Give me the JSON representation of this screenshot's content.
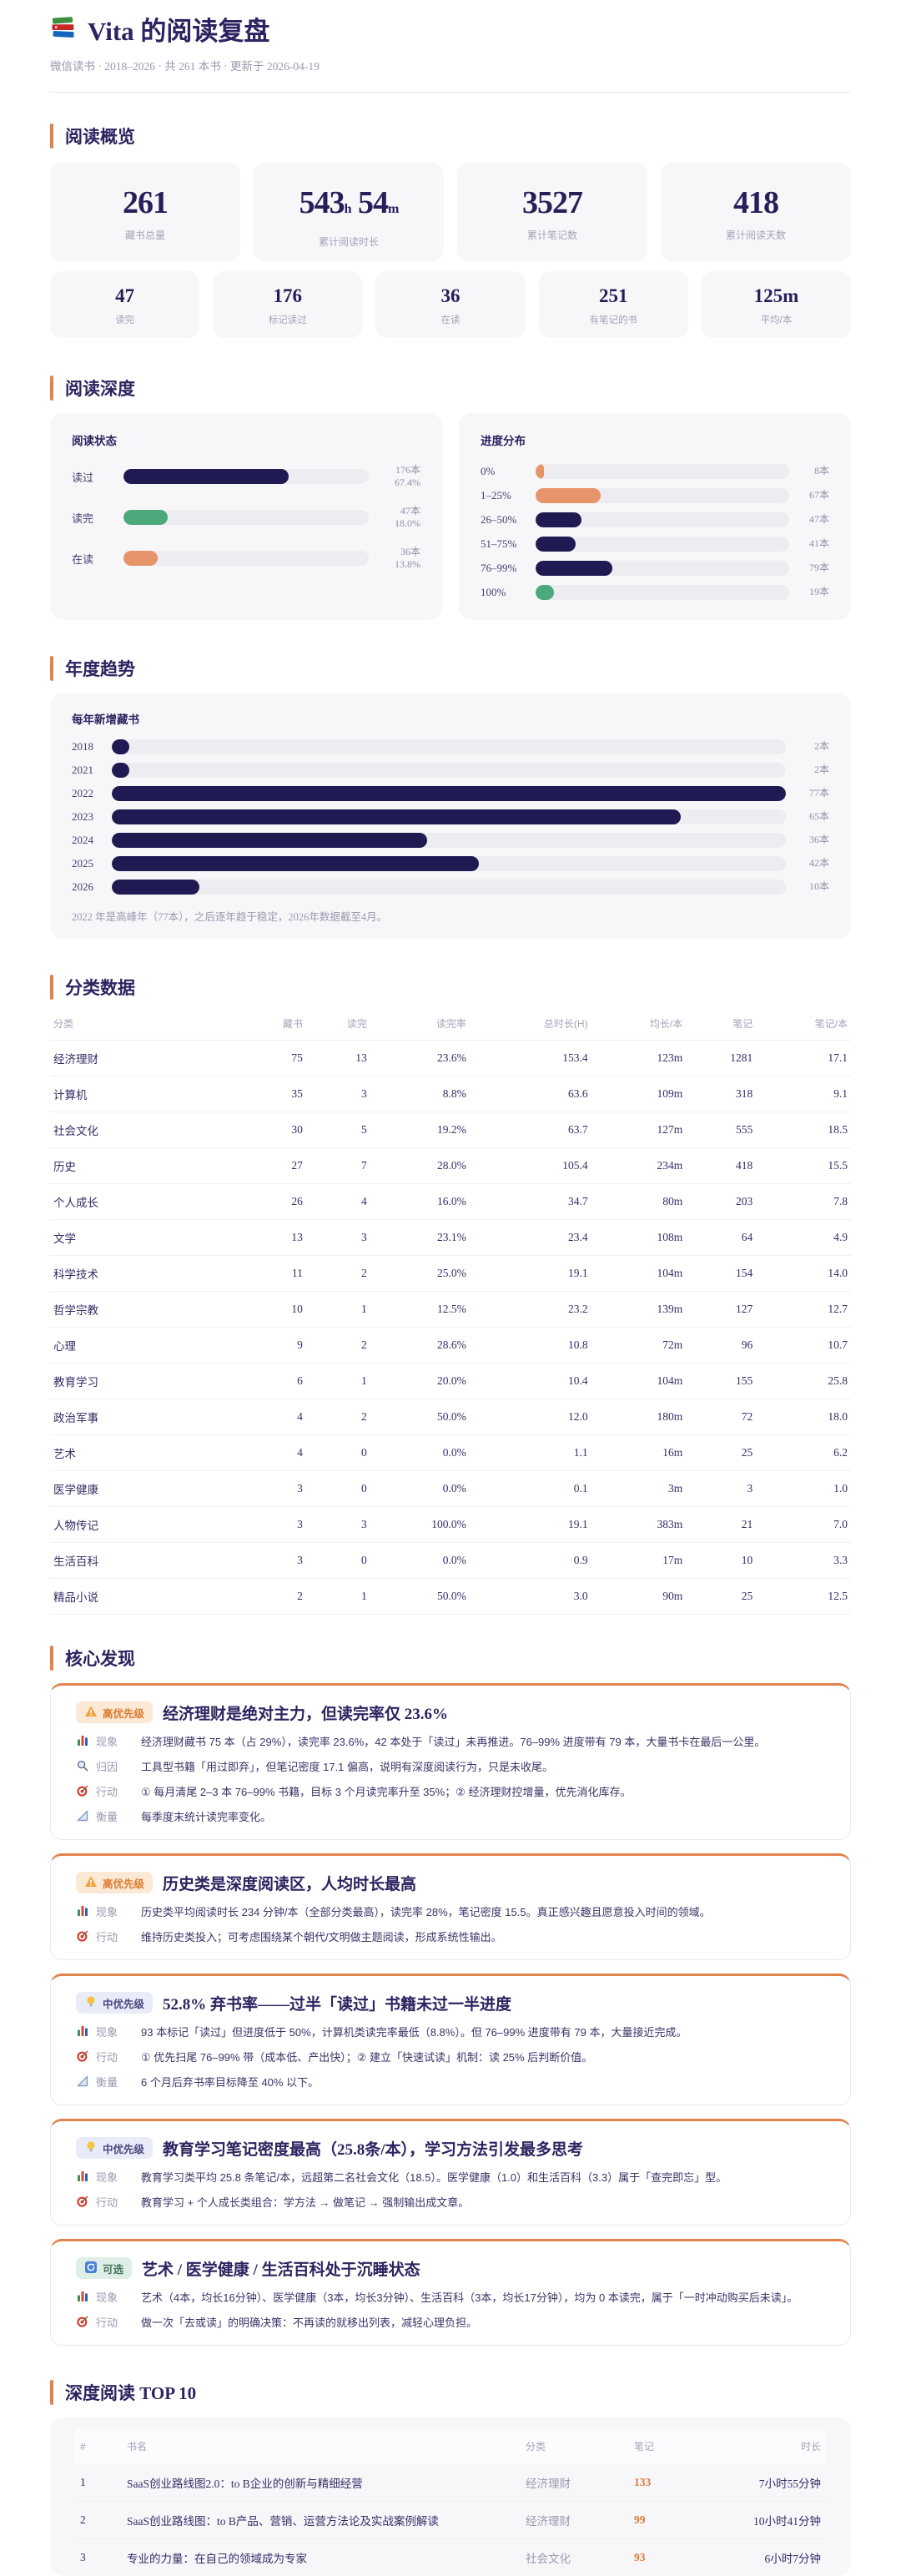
{
  "header": {
    "icon": "books-icon",
    "title": "Vita 的阅读复盘",
    "subtitle": "微信读书 · 2018–2026 · 共 261 本书 · 更新于 2026-04-19"
  },
  "colors": {
    "navy": "#201A52",
    "green": "#4BA97C",
    "orange": "#E6946A",
    "accent": "#E2824D",
    "note_orange": "#E07B35"
  },
  "sections": {
    "overview": "阅读概览",
    "depth": "阅读深度",
    "trend": "年度趋势",
    "category": "分类数据",
    "findings": "核心发现",
    "top10": "深度阅读 TOP 10"
  },
  "overview": {
    "primary": [
      {
        "parts": [
          {
            "t": "261"
          }
        ],
        "label": "藏书总量"
      },
      {
        "parts": [
          {
            "t": "543"
          },
          {
            "t": "h",
            "small": true
          },
          {
            "t": " 54",
            "small": false
          },
          {
            "t": "m",
            "small": true
          }
        ],
        "label": "累计阅读时长"
      },
      {
        "parts": [
          {
            "t": "3527"
          }
        ],
        "label": "累计笔记数"
      },
      {
        "parts": [
          {
            "t": "418"
          }
        ],
        "label": "累计阅读天数"
      }
    ],
    "secondary": [
      {
        "value": "47",
        "label": "读完"
      },
      {
        "value": "176",
        "label": "标记读过"
      },
      {
        "value": "36",
        "label": "在读"
      },
      {
        "value": "251",
        "label": "有笔记的书"
      },
      {
        "value": "125m",
        "label": "平均/本"
      }
    ]
  },
  "depth": {
    "status": {
      "title": "阅读状态",
      "bars": [
        {
          "label": "读过",
          "lines": [
            "176本",
            "67.4%"
          ],
          "pct": 67.4,
          "color": "navy"
        },
        {
          "label": "读完",
          "lines": [
            "47本",
            "18.0%"
          ],
          "pct": 18.0,
          "color": "green"
        },
        {
          "label": "在读",
          "lines": [
            "36本",
            "13.8%"
          ],
          "pct": 13.8,
          "color": "orange"
        }
      ]
    },
    "progress": {
      "title": "进度分布",
      "bars": [
        {
          "label": "0%",
          "lines": [
            "8本"
          ],
          "pct": 3.1,
          "color": "orange"
        },
        {
          "label": "1–25%",
          "lines": [
            "67本"
          ],
          "pct": 25.7,
          "color": "orange"
        },
        {
          "label": "26–50%",
          "lines": [
            "47本"
          ],
          "pct": 18.0,
          "color": "navy"
        },
        {
          "label": "51–75%",
          "lines": [
            "41本"
          ],
          "pct": 15.7,
          "color": "navy"
        },
        {
          "label": "76–99%",
          "lines": [
            "79本"
          ],
          "pct": 30.3,
          "color": "navy"
        },
        {
          "label": "100%",
          "lines": [
            "19本"
          ],
          "pct": 7.3,
          "color": "green"
        }
      ]
    }
  },
  "trend": {
    "title": "每年新增藏书",
    "bars": [
      {
        "label": "2018",
        "lines": [
          "2本"
        ],
        "pct": 2.6,
        "color": "navy"
      },
      {
        "label": "2021",
        "lines": [
          "2本"
        ],
        "pct": 2.6,
        "color": "navy"
      },
      {
        "label": "2022",
        "lines": [
          "77本"
        ],
        "pct": 100,
        "color": "navy"
      },
      {
        "label": "2023",
        "lines": [
          "65本"
        ],
        "pct": 84.4,
        "color": "navy"
      },
      {
        "label": "2024",
        "lines": [
          "36本"
        ],
        "pct": 46.8,
        "color": "navy"
      },
      {
        "label": "2025",
        "lines": [
          "42本"
        ],
        "pct": 54.5,
        "color": "navy"
      },
      {
        "label": "2026",
        "lines": [
          "10本"
        ],
        "pct": 13.0,
        "color": "navy"
      }
    ],
    "note": "2022 年是高峰年（77本），之后逐年趋于稳定，2026年数据截至4月。"
  },
  "category_table": {
    "headers": [
      "分类",
      "藏书",
      "读完",
      "读完率",
      "总时长(H)",
      "均长/本",
      "笔记",
      "笔记/本"
    ],
    "rows": [
      [
        "经济理财",
        "75",
        "13",
        "23.6%",
        "153.4",
        "123m",
        "1281",
        "17.1"
      ],
      [
        "计算机",
        "35",
        "3",
        "8.8%",
        "63.6",
        "109m",
        "318",
        "9.1"
      ],
      [
        "社会文化",
        "30",
        "5",
        "19.2%",
        "63.7",
        "127m",
        "555",
        "18.5"
      ],
      [
        "历史",
        "27",
        "7",
        "28.0%",
        "105.4",
        "234m",
        "418",
        "15.5"
      ],
      [
        "个人成长",
        "26",
        "4",
        "16.0%",
        "34.7",
        "80m",
        "203",
        "7.8"
      ],
      [
        "文学",
        "13",
        "3",
        "23.1%",
        "23.4",
        "108m",
        "64",
        "4.9"
      ],
      [
        "科学技术",
        "11",
        "2",
        "25.0%",
        "19.1",
        "104m",
        "154",
        "14.0"
      ],
      [
        "哲学宗教",
        "10",
        "1",
        "12.5%",
        "23.2",
        "139m",
        "127",
        "12.7"
      ],
      [
        "心理",
        "9",
        "2",
        "28.6%",
        "10.8",
        "72m",
        "96",
        "10.7"
      ],
      [
        "教育学习",
        "6",
        "1",
        "20.0%",
        "10.4",
        "104m",
        "155",
        "25.8"
      ],
      [
        "政治军事",
        "4",
        "2",
        "50.0%",
        "12.0",
        "180m",
        "72",
        "18.0"
      ],
      [
        "艺术",
        "4",
        "0",
        "0.0%",
        "1.1",
        "16m",
        "25",
        "6.2"
      ],
      [
        "医学健康",
        "3",
        "0",
        "0.0%",
        "0.1",
        "3m",
        "3",
        "1.0"
      ],
      [
        "人物传记",
        "3",
        "3",
        "100.0%",
        "19.1",
        "383m",
        "21",
        "7.0"
      ],
      [
        "生活百科",
        "3",
        "0",
        "0.0%",
        "0.9",
        "17m",
        "10",
        "3.3"
      ],
      [
        "精品小说",
        "2",
        "1",
        "50.0%",
        "3.0",
        "90m",
        "25",
        "12.5"
      ]
    ]
  },
  "findings": [
    {
      "badge": {
        "icon": "warning-icon",
        "label": "高优先级",
        "type": "high"
      },
      "title": "经济理财是绝对主力，但读完率仅 23.6%",
      "rows": [
        {
          "icon": "chart-icon",
          "label": "现象",
          "text": "经济理财藏书 75 本（占 29%），读完率 23.6%，42 本处于「读过」未再推进。76–99% 进度带有 79 本，大量书卡在最后一公里。"
        },
        {
          "icon": "magnifier-icon",
          "label": "归因",
          "text": "工具型书籍「用过即弃」，但笔记密度 17.1 偏高，说明有深度阅读行为，只是未收尾。"
        },
        {
          "icon": "target-icon",
          "label": "行动",
          "text": "① 每月清尾 2–3 本 76–99% 书籍，目标 3 个月读完率升至 35%；② 经济理财控增量，优先消化库存。"
        },
        {
          "icon": "ruler-icon",
          "label": "衡量",
          "text": "每季度末统计读完率变化。"
        }
      ]
    },
    {
      "badge": {
        "icon": "warning-icon",
        "label": "高优先级",
        "type": "high"
      },
      "title": "历史类是深度阅读区，人均时长最高",
      "rows": [
        {
          "icon": "chart-icon",
          "label": "现象",
          "text": "历史类平均阅读时长 234 分钟/本（全部分类最高），读完率 28%，笔记密度 15.5。真正感兴趣且愿意投入时间的领域。"
        },
        {
          "icon": "target-icon",
          "label": "行动",
          "text": "维持历史类投入；可考虑围绕某个朝代/文明做主题阅读，形成系统性输出。"
        }
      ]
    },
    {
      "badge": {
        "icon": "bulb-icon",
        "label": "中优先级",
        "type": "mid"
      },
      "title": "52.8% 弃书率——过半「读过」书籍未过一半进度",
      "rows": [
        {
          "icon": "chart-icon",
          "label": "现象",
          "text": "93 本标记「读过」但进度低于 50%，计算机类读完率最低（8.8%）。但 76–99% 进度带有 79 本，大量接近完成。"
        },
        {
          "icon": "target-icon",
          "label": "行动",
          "text": "① 优先扫尾 76–99% 带（成本低、产出快）；② 建立「快速试读」机制：读 25% 后判断价值。"
        },
        {
          "icon": "ruler-icon",
          "label": "衡量",
          "text": "6 个月后弃书率目标降至 40% 以下。"
        }
      ]
    },
    {
      "badge": {
        "icon": "bulb-icon",
        "label": "中优先级",
        "type": "mid"
      },
      "title": "教育学习笔记密度最高（25.8条/本），学习方法引发最多思考",
      "rows": [
        {
          "icon": "chart-icon",
          "label": "现象",
          "text": "教育学习类平均 25.8 条笔记/本，远超第二名社会文化（18.5）。医学健康（1.0）和生活百科（3.3）属于「查完即忘」型。"
        },
        {
          "icon": "target-icon",
          "label": "行动",
          "text": "教育学习 + 个人成长类组合：学方法 → 做笔记 → 强制输出成文章。"
        }
      ]
    },
    {
      "badge": {
        "icon": "refresh-icon",
        "label": "可选",
        "type": "opt"
      },
      "title": "艺术 / 医学健康 / 生活百科处于沉睡状态",
      "rows": [
        {
          "icon": "chart-icon",
          "label": "现象",
          "text": "艺术（4本，均长16分钟）、医学健康（3本，均长3分钟）、生活百科（3本，均长17分钟），均为 0 本读完，属于「一时冲动购买后未读」。"
        },
        {
          "icon": "target-icon",
          "label": "行动",
          "text": "做一次「去或读」的明确决策：不再读的就移出列表，减轻心理负担。"
        }
      ]
    }
  ],
  "top10_table": {
    "headers": [
      "#",
      "书名",
      "分类",
      "笔记",
      "时长"
    ],
    "rows": [
      {
        "rank": "1",
        "title": "SaaS创业路线图2.0：to B企业的创新与精细经营",
        "category": "经济理财",
        "notes": "133",
        "duration": "7小时55分钟"
      },
      {
        "rank": "2",
        "title": "SaaS创业路线图：to B产品、营销、运营方法论及实战案例解读",
        "category": "经济理财",
        "notes": "99",
        "duration": "10小时41分钟"
      },
      {
        "rank": "3",
        "title": "专业的力量：在自己的领域成为专家",
        "category": "社会文化",
        "notes": "93",
        "duration": "6小时7分钟"
      }
    ]
  },
  "chart_data": [
    {
      "type": "bar",
      "title": "阅读状态",
      "categories": [
        "读过",
        "读完",
        "在读"
      ],
      "values": [
        176,
        47,
        36
      ],
      "percent_labels": [
        "67.4%",
        "18.0%",
        "13.8%"
      ],
      "unit": "本",
      "orientation": "horizontal",
      "colors": [
        "#201A52",
        "#4BA97C",
        "#E6946A"
      ],
      "xlim": [
        0,
        261
      ]
    },
    {
      "type": "bar",
      "title": "进度分布",
      "categories": [
        "0%",
        "1–25%",
        "26–50%",
        "51–75%",
        "76–99%",
        "100%"
      ],
      "values": [
        8,
        67,
        47,
        41,
        79,
        19
      ],
      "unit": "本",
      "orientation": "horizontal",
      "colors": [
        "#E6946A",
        "#E6946A",
        "#201A52",
        "#201A52",
        "#201A52",
        "#4BA97C"
      ],
      "xlim": [
        0,
        261
      ]
    },
    {
      "type": "bar",
      "title": "每年新增藏书",
      "categories": [
        "2018",
        "2021",
        "2022",
        "2023",
        "2024",
        "2025",
        "2026"
      ],
      "values": [
        2,
        2,
        77,
        65,
        36,
        42,
        10
      ],
      "unit": "本",
      "orientation": "horizontal",
      "colors": [
        "#201A52"
      ],
      "xlim": [
        0,
        77
      ],
      "annotation": "2022 年是高峰年（77本），之后逐年趋于稳定，2026年数据截至4月。"
    }
  ]
}
